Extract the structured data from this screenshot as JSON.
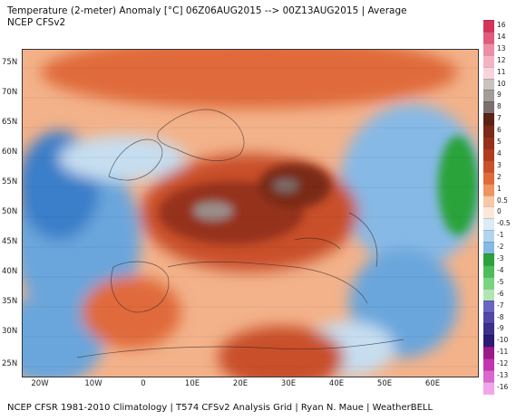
{
  "header": {
    "title_line1": "Temperature (2-meter) Anomaly  [°C] 06Z06AUG2015 --> 00Z13AUG2015 | Average",
    "title_line2": "NCEP CFSv2"
  },
  "footer": {
    "text": "NCEP CFSR 1981-2010 Climatology | T574 CFSv2 Analysis Grid | Ryan N. Maue | WeatherBELL"
  },
  "map": {
    "lat_labels": [
      "75N",
      "70N",
      "65N",
      "60N",
      "55N",
      "50N",
      "45N",
      "40N",
      "35N",
      "30N",
      "25N"
    ],
    "lon_labels": [
      "20W",
      "10W",
      "0",
      "10E",
      "20E",
      "30E",
      "40E",
      "50E",
      "60E"
    ],
    "palette": {
      "deep_red": "#8b2a1a",
      "red": "#c0421f",
      "orange": "#e06a3a",
      "light_orange": "#f3b28a",
      "pale": "#fde7d8",
      "light_blue": "#c6def0",
      "blue": "#6aa6dc",
      "deep_blue": "#3a7ec9",
      "green": "#2aa33a",
      "grey_hot": "#9a8f8a"
    }
  },
  "colorbar": {
    "entries": [
      {
        "label": "16",
        "color": "#d6315a"
      },
      {
        "label": "14",
        "color": "#e25a7c"
      },
      {
        "label": "13",
        "color": "#ee8ea6"
      },
      {
        "label": "12",
        "color": "#f4b3c3"
      },
      {
        "label": "11",
        "color": "#f8d3dc"
      },
      {
        "label": "10",
        "color": "#c8c2c0"
      },
      {
        "label": "9",
        "color": "#a39c99"
      },
      {
        "label": "8",
        "color": "#7b706c"
      },
      {
        "label": "7",
        "color": "#5a2316"
      },
      {
        "label": "6",
        "color": "#7a2a18"
      },
      {
        "label": "5",
        "color": "#96301b"
      },
      {
        "label": "4",
        "color": "#b13b1f"
      },
      {
        "label": "3",
        "color": "#c9502a"
      },
      {
        "label": "2",
        "color": "#e06a3a"
      },
      {
        "label": "1",
        "color": "#f0935e"
      },
      {
        "label": "0.5",
        "color": "#f8c7a3"
      },
      {
        "label": "0",
        "color": "#fde7d8"
      },
      {
        "label": "-0.5",
        "color": "#dcebf6"
      },
      {
        "label": "-1",
        "color": "#b4d4ee"
      },
      {
        "label": "-2",
        "color": "#86b9e6"
      },
      {
        "label": "-3",
        "color": "#2aa33a"
      },
      {
        "label": "-4",
        "color": "#4cbd58"
      },
      {
        "label": "-5",
        "color": "#7ad381"
      },
      {
        "label": "-6",
        "color": "#b0e6b2"
      },
      {
        "label": "-7",
        "color": "#6a64c2"
      },
      {
        "label": "-8",
        "color": "#5148a8"
      },
      {
        "label": "-9",
        "color": "#3d2f8c"
      },
      {
        "label": "-10",
        "color": "#2c1b72"
      },
      {
        "label": "-11",
        "color": "#9a1a8a"
      },
      {
        "label": "-12",
        "color": "#c234b2"
      },
      {
        "label": "-13",
        "color": "#dc67cf"
      },
      {
        "label": "-16",
        "color": "#f0a6e8"
      }
    ]
  }
}
